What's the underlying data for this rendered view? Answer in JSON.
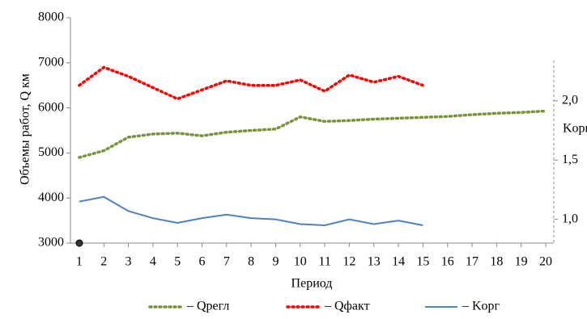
{
  "chart_data": {
    "type": "line",
    "ylabel": "Объемы работ, Q км",
    "y2label": "Kорг",
    "xlabel": "Период",
    "x": [
      1,
      2,
      3,
      4,
      5,
      6,
      7,
      8,
      9,
      10,
      11,
      12,
      13,
      14,
      15,
      16,
      17,
      18,
      19,
      20
    ],
    "xlim": [
      0.64,
      20.33
    ],
    "ylim": [
      3000,
      8000
    ],
    "yticks": [
      3000,
      4000,
      5000,
      6000,
      7000,
      8000
    ],
    "y2lim": [
      0.8,
      2.7
    ],
    "y2ticks": [
      {
        "value": 1,
        "label": "1,0"
      },
      {
        "value": 1.5,
        "label": "1,5"
      },
      {
        "value": 2,
        "label": "2,0"
      }
    ],
    "series": [
      {
        "name": "– Qрегл",
        "color": "#77933c",
        "style": "dotted",
        "values": [
          4900,
          5050,
          5350,
          5420,
          5440,
          5380,
          5460,
          5500,
          5530,
          5800,
          5700,
          5720,
          5750,
          5770,
          5790,
          5810,
          5850,
          5880,
          5900,
          5930
        ]
      },
      {
        "name": "– Qфакт",
        "color": "#ff0000",
        "style": "dotted",
        "values": [
          6500,
          6900,
          6700,
          6450,
          6200,
          6400,
          6600,
          6500,
          6500,
          6620,
          6370,
          6730,
          6570,
          6700,
          6500,
          null,
          null,
          null,
          null,
          null
        ]
      },
      {
        "name": "– Kорг",
        "color": "#4f81bd",
        "style": "solid",
        "axis": "y2",
        "values": [
          1.15,
          1.19,
          1.07,
          1.01,
          0.97,
          1.01,
          1.04,
          1.01,
          1.0,
          0.96,
          0.95,
          1.0,
          0.96,
          0.99,
          0.95,
          null,
          null,
          null,
          null,
          null
        ]
      }
    ]
  }
}
